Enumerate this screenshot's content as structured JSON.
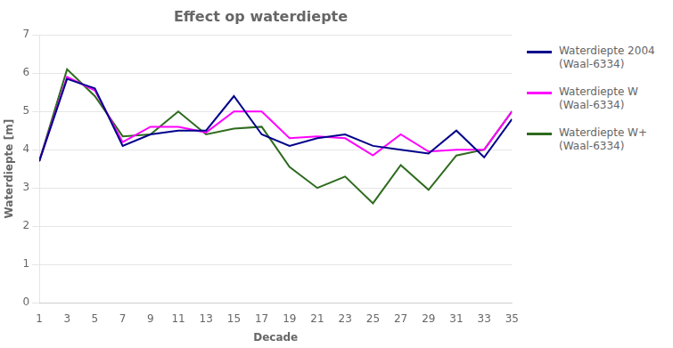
{
  "chart_data": {
    "type": "line",
    "title": "Effect op waterdiepte",
    "xlabel": "Decade",
    "ylabel": "Waterdiepte [m]",
    "x": [
      1,
      3,
      5,
      7,
      9,
      11,
      13,
      15,
      17,
      19,
      21,
      23,
      25,
      27,
      29,
      31,
      33,
      35
    ],
    "series": [
      {
        "name": "Waterdiepte 2004\n(Waal-6334)",
        "color": "#00008B",
        "values": [
          3.7,
          5.85,
          5.6,
          4.1,
          4.4,
          4.5,
          4.5,
          5.4,
          4.4,
          4.1,
          4.3,
          4.4,
          4.1,
          4.0,
          3.9,
          4.5,
          3.8,
          4.8
        ]
      },
      {
        "name": "Waterdiepte W\n(Waal-6334)",
        "color": "#FF00FF",
        "values": [
          3.7,
          5.9,
          5.55,
          4.2,
          4.6,
          4.6,
          4.45,
          5.0,
          5.0,
          4.3,
          4.35,
          4.3,
          3.85,
          4.4,
          3.95,
          4.0,
          4.0,
          5.0
        ]
      },
      {
        "name": "Waterdiepte W+\n(Waal-6334)",
        "color": "#2E6B1E",
        "values": [
          3.7,
          6.1,
          5.4,
          4.35,
          4.4,
          5.0,
          4.4,
          4.55,
          4.6,
          3.55,
          3.0,
          3.3,
          2.6,
          3.6,
          2.95,
          3.85,
          4.0,
          5.0
        ]
      }
    ],
    "xlim": [
      1,
      35
    ],
    "xticks": [
      1,
      3,
      5,
      7,
      9,
      11,
      13,
      15,
      17,
      19,
      21,
      23,
      25,
      27,
      29,
      31,
      33,
      35
    ],
    "ylim": [
      0,
      7
    ],
    "yticks": [
      0,
      1,
      2,
      3,
      4,
      5,
      6,
      7
    ],
    "grid": "y",
    "legend": "right"
  }
}
